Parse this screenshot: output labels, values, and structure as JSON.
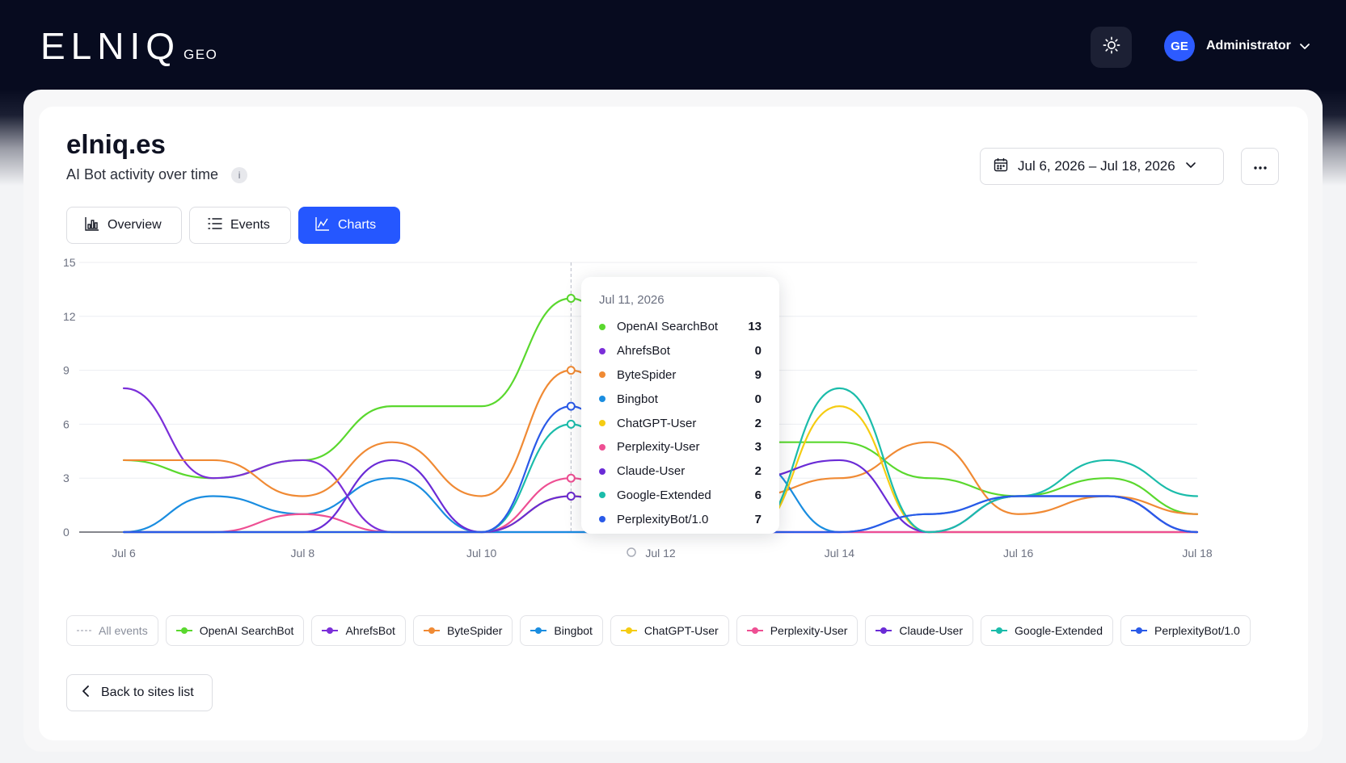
{
  "header": {
    "logo_main": "ELNIQ",
    "logo_sub": "GEO",
    "theme_icon": "sun-icon",
    "user": {
      "initials": "GE",
      "name": "Administrator"
    }
  },
  "page": {
    "site": "elniq.es",
    "subtitle": "AI Bot activity over time",
    "info_label": "i",
    "date_range": "Jul 6, 2026 – Jul 18, 2026",
    "tabs": [
      {
        "label": "Overview",
        "icon": "chart-icon",
        "active": false
      },
      {
        "label": "Events",
        "icon": "list-icon",
        "active": false
      },
      {
        "label": "Charts",
        "icon": "chart-icon",
        "active": true
      }
    ],
    "back_label": "Back to sites list"
  },
  "colors": {
    "accent": "#2557ff",
    "OpenAI SearchBot": "#5ad82e",
    "AhrefsBot": "#7b2fd9",
    "ByteSpider": "#f08a34",
    "Bingbot": "#1a8de0",
    "ChatGPT-User": "#f5cc12",
    "Perplexity-User": "#ee4f93",
    "Claude-User": "#6a2bd6",
    "Google-Extended": "#1bbcaa",
    "PerplexityBot/1.0": "#2a5ae8"
  },
  "legend_all_label": "All events",
  "tooltip": {
    "date": "Jul 11, 2026",
    "rows": [
      {
        "name": "OpenAI SearchBot",
        "value": "13"
      },
      {
        "name": "AhrefsBot",
        "value": "0"
      },
      {
        "name": "ByteSpider",
        "value": "9"
      },
      {
        "name": "Bingbot",
        "value": "0"
      },
      {
        "name": "ChatGPT-User",
        "value": "2"
      },
      {
        "name": "Perplexity-User",
        "value": "3"
      },
      {
        "name": "Claude-User",
        "value": "2"
      },
      {
        "name": "Google-Extended",
        "value": "6"
      },
      {
        "name": "PerplexityBot/1.0",
        "value": "7"
      }
    ]
  },
  "chart_data": {
    "type": "line",
    "x": [
      "Jul 6",
      "Jul 7",
      "Jul 8",
      "Jul 9",
      "Jul 10",
      "Jul 11",
      "Jul 12",
      "Jul 13",
      "Jul 14",
      "Jul 15",
      "Jul 16",
      "Jul 17",
      "Jul 18"
    ],
    "x_ticks": [
      "Jul 6",
      "Jul 8",
      "Jul 10",
      "Jul 12",
      "Jul 14",
      "Jul 16",
      "Jul 18"
    ],
    "y_ticks": [
      0,
      3,
      6,
      9,
      12,
      15
    ],
    "ylim": [
      0,
      15
    ],
    "grid": true,
    "legend_position": "bottom",
    "highlight": "Jul 11",
    "series": [
      {
        "name": "OpenAI SearchBot",
        "values": [
          4,
          3,
          4,
          7,
          7,
          13,
          6,
          5,
          5,
          3,
          2,
          3,
          1
        ]
      },
      {
        "name": "AhrefsBot",
        "values": [
          8,
          3,
          4,
          0,
          0,
          0,
          0,
          0,
          0,
          0,
          0,
          0,
          0
        ]
      },
      {
        "name": "ByteSpider",
        "values": [
          4,
          4,
          2,
          5,
          2,
          9,
          3,
          2,
          3,
          5,
          1,
          2,
          1
        ]
      },
      {
        "name": "Bingbot",
        "values": [
          0,
          2,
          1,
          3,
          0,
          0,
          0,
          4,
          0,
          1,
          2,
          2,
          0
        ]
      },
      {
        "name": "ChatGPT-User",
        "values": [
          0,
          0,
          0,
          0,
          0,
          2,
          1,
          0,
          7,
          0,
          0,
          0,
          0
        ]
      },
      {
        "name": "Perplexity-User",
        "values": [
          0,
          0,
          1,
          0,
          0,
          3,
          0,
          0,
          0,
          0,
          0,
          0,
          0
        ]
      },
      {
        "name": "Claude-User",
        "values": [
          0,
          0,
          0,
          4,
          0,
          2,
          0,
          3,
          4,
          0,
          2,
          2,
          0
        ]
      },
      {
        "name": "Google-Extended",
        "values": [
          0,
          0,
          0,
          0,
          0,
          6,
          0,
          0,
          8,
          0,
          2,
          4,
          2
        ]
      },
      {
        "name": "PerplexityBot/1.0",
        "values": [
          0,
          0,
          0,
          0,
          0,
          7,
          0,
          0,
          0,
          1,
          2,
          2,
          0
        ]
      }
    ]
  }
}
